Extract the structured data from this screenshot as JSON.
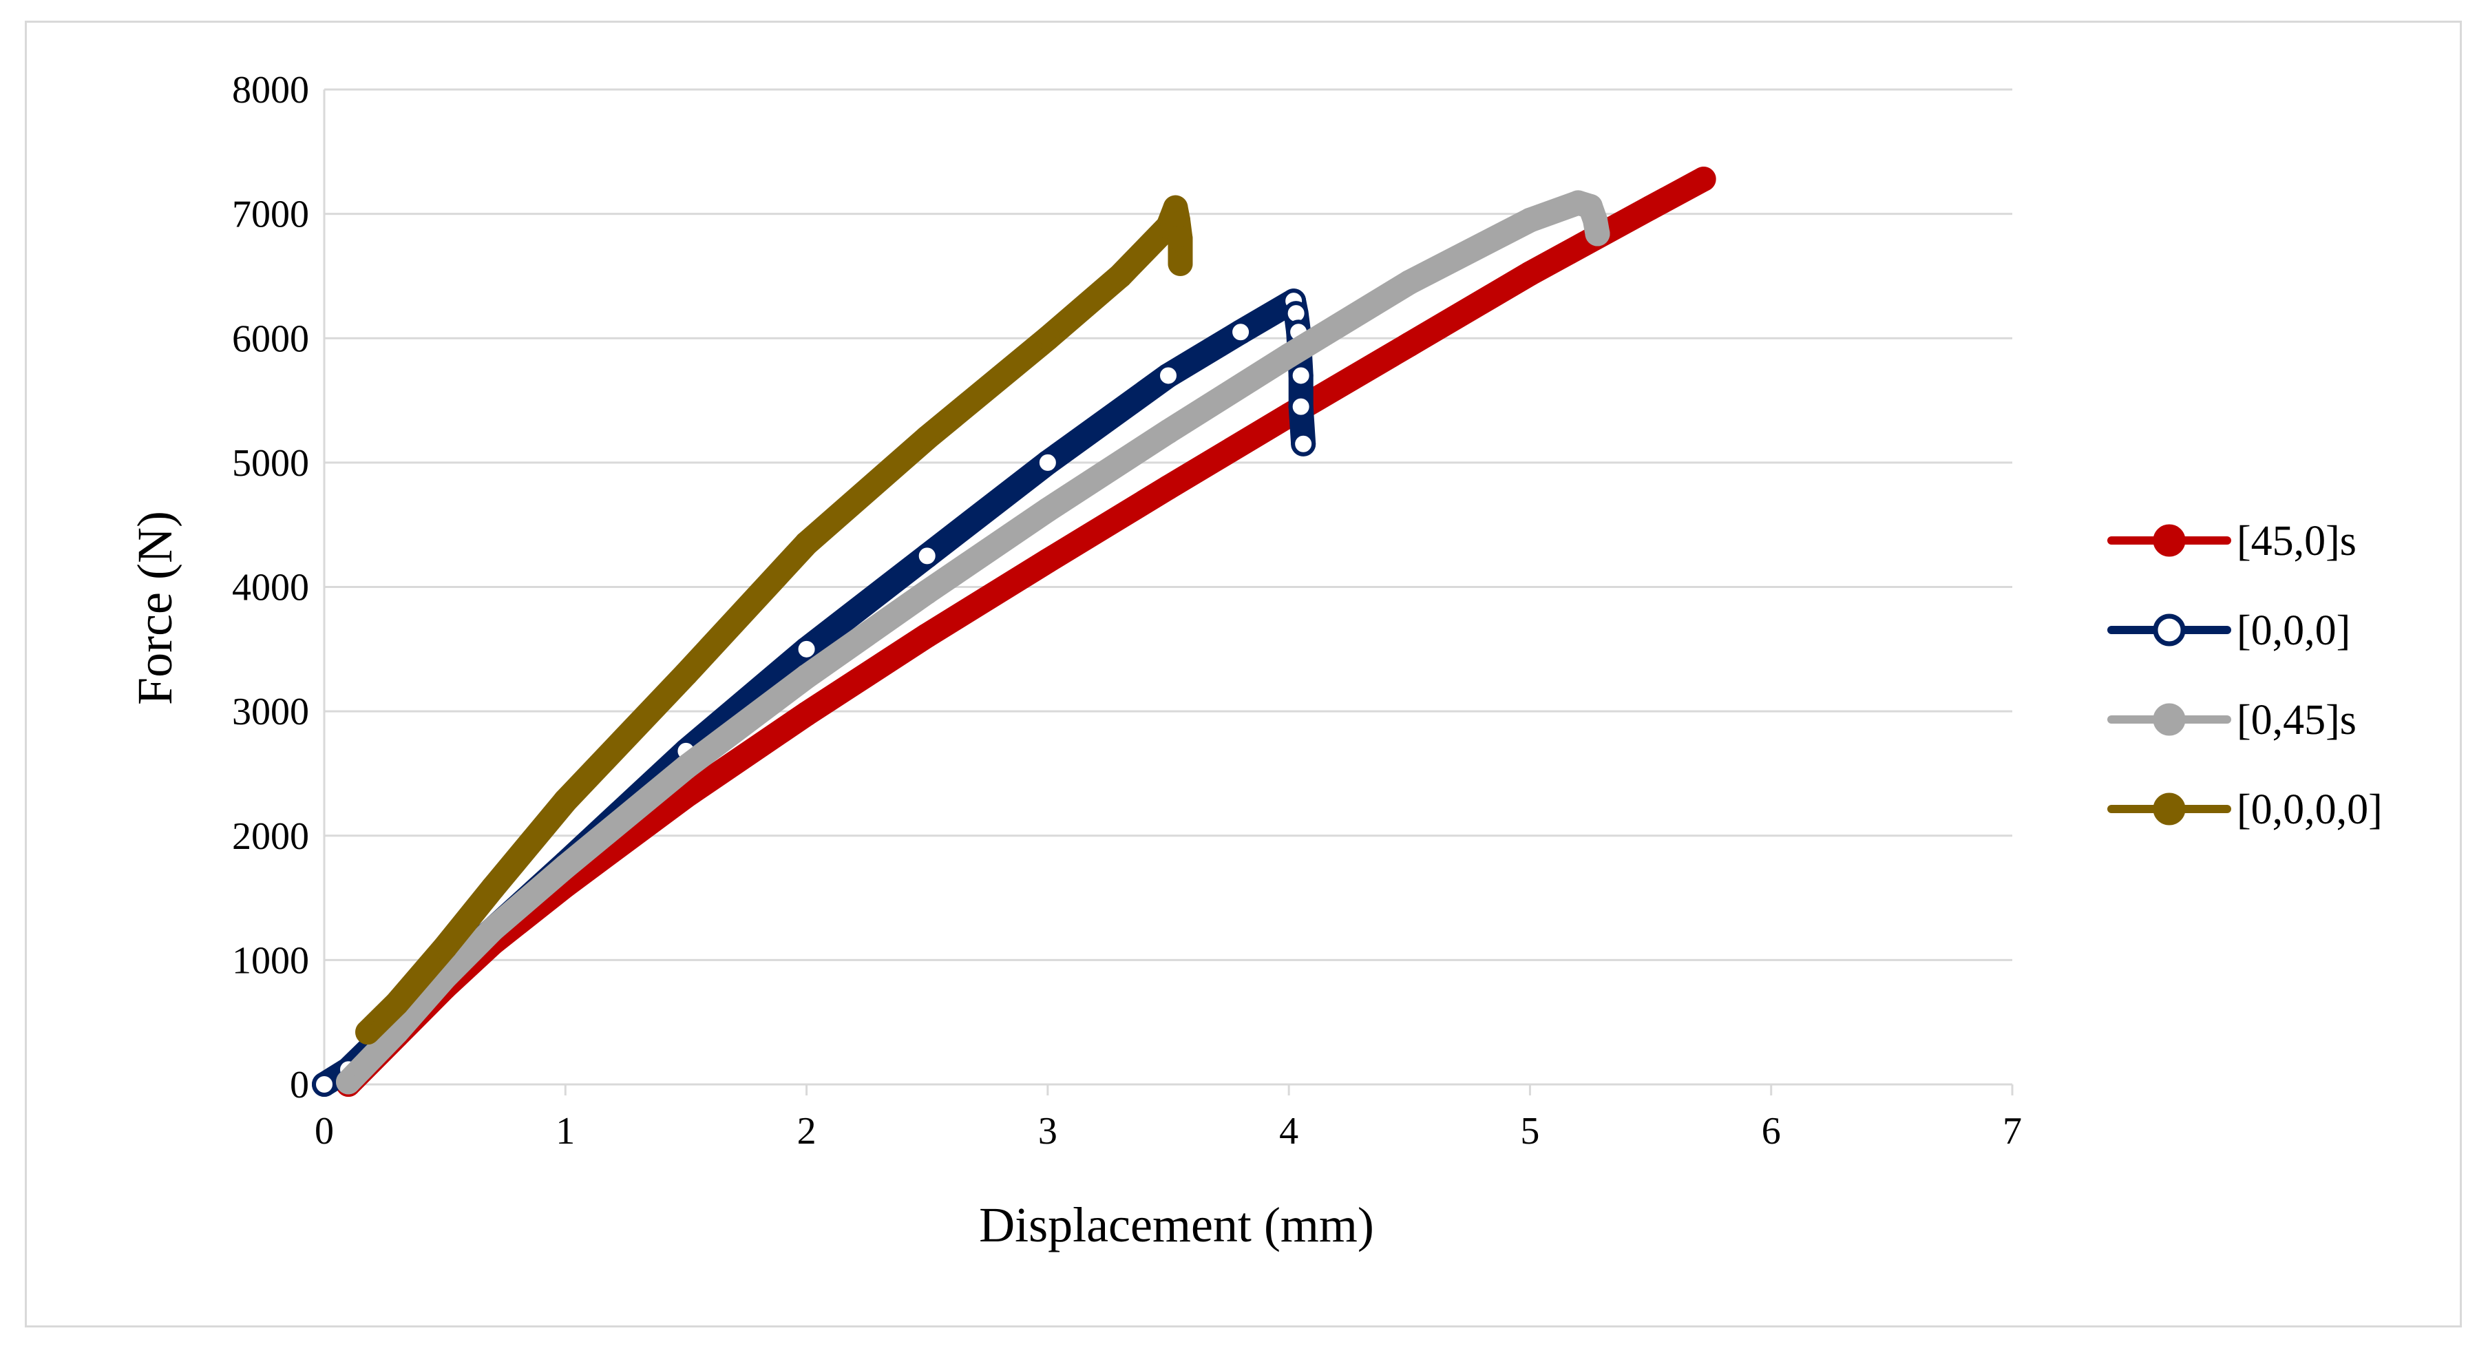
{
  "chart_data": {
    "type": "scatter",
    "title": "",
    "xlabel": "Displacement (mm)",
    "ylabel": "Force (N)",
    "xlim": [
      0,
      7
    ],
    "ylim": [
      0,
      8000
    ],
    "x_ticks": [
      "0",
      "1",
      "2",
      "3",
      "4",
      "5",
      "6",
      "7"
    ],
    "y_ticks": [
      "0",
      "1000",
      "2000",
      "3000",
      "4000",
      "5000",
      "6000",
      "7000",
      "8000"
    ],
    "grid": "horizontal",
    "legend_position": "right",
    "series": [
      {
        "name": "[45,0]s",
        "color": "#c00000",
        "marker": "filled-circle",
        "x": [
          0.1,
          0.3,
          0.5,
          0.7,
          1.0,
          1.5,
          2.0,
          2.5,
          3.0,
          3.5,
          4.0,
          4.5,
          5.0,
          5.5,
          5.72
        ],
        "y": [
          0,
          390,
          780,
          1140,
          1600,
          2320,
          2980,
          3610,
          4210,
          4800,
          5380,
          5950,
          6520,
          7050,
          7280
        ]
      },
      {
        "name": "[0,0,0]",
        "color": "#002060",
        "marker": "open-circle",
        "x": [
          0.0,
          0.1,
          0.3,
          0.5,
          0.7,
          1.0,
          1.5,
          2.0,
          2.5,
          3.0,
          3.5,
          3.8,
          4.02,
          4.03,
          4.04,
          4.05,
          4.05,
          4.06
        ],
        "y": [
          0,
          120,
          500,
          900,
          1250,
          1780,
          2680,
          3500,
          4250,
          5000,
          5700,
          6050,
          6300,
          6200,
          6050,
          5700,
          5450,
          5150
        ]
      },
      {
        "name": "[0,45]s",
        "color": "#a6a6a6",
        "marker": "filled-circle",
        "x": [
          0.1,
          0.3,
          0.5,
          0.7,
          1.0,
          1.5,
          2.0,
          2.5,
          3.0,
          3.5,
          4.0,
          4.5,
          5.0,
          5.2,
          5.25,
          5.27,
          5.28
        ],
        "y": [
          20,
          420,
          860,
          1250,
          1750,
          2550,
          3280,
          3960,
          4620,
          5250,
          5860,
          6450,
          6950,
          7090,
          7060,
          6950,
          6840
        ]
      },
      {
        "name": "[0,0,0,0]",
        "color": "#7f6000",
        "marker": "filled-circle",
        "x": [
          0.18,
          0.3,
          0.5,
          0.7,
          1.0,
          1.5,
          2.0,
          2.5,
          3.0,
          3.3,
          3.5,
          3.53,
          3.54,
          3.55,
          3.55
        ],
        "y": [
          420,
          650,
          1100,
          1580,
          2280,
          3300,
          4350,
          5200,
          6000,
          6500,
          6900,
          7050,
          6950,
          6800,
          6600
        ]
      }
    ]
  }
}
